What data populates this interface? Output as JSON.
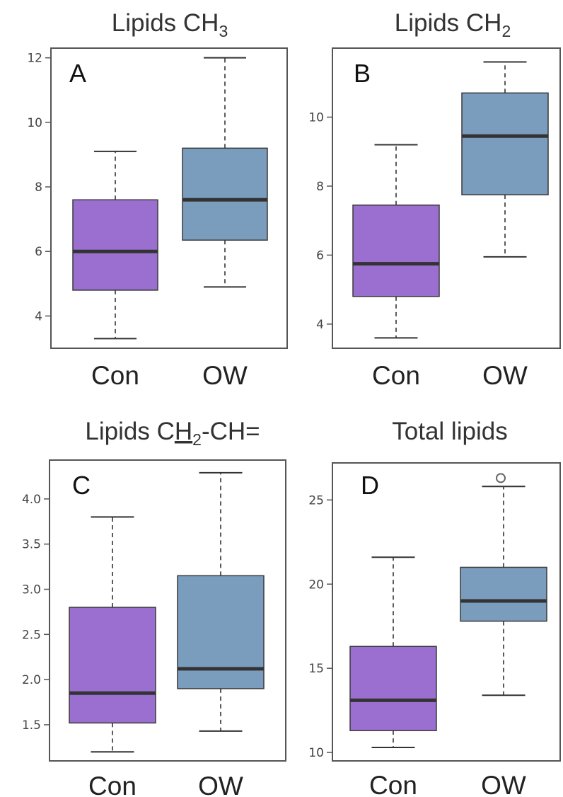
{
  "colors": {
    "con": "#9b6fd0",
    "ow": "#7a9cbd"
  },
  "chart_data": [
    {
      "type": "box",
      "panel": "A",
      "title": "Lipids CH",
      "title_sub": "3",
      "title_tail": "",
      "categories": [
        "Con",
        "OW"
      ],
      "yticks": [
        "4",
        "6",
        "8",
        "10",
        "12"
      ],
      "ylim": [
        3.0,
        12.3
      ],
      "boxes": [
        {
          "name": "Con",
          "min": 3.3,
          "q1": 4.8,
          "median": 6.0,
          "q3": 7.6,
          "max": 9.1,
          "outliers": []
        },
        {
          "name": "OW",
          "min": 4.9,
          "q1": 6.35,
          "median": 7.6,
          "q3": 9.2,
          "max": 12.0,
          "outliers": []
        }
      ]
    },
    {
      "type": "box",
      "panel": "B",
      "title": "Lipids CH",
      "title_sub": "2",
      "title_tail": "",
      "categories": [
        "Con",
        "OW"
      ],
      "yticks": [
        "4",
        "6",
        "8",
        "10"
      ],
      "ylim": [
        3.3,
        12.0
      ],
      "boxes": [
        {
          "name": "Con",
          "min": 3.6,
          "q1": 4.8,
          "median": 5.75,
          "q3": 7.45,
          "max": 9.2,
          "outliers": []
        },
        {
          "name": "OW",
          "min": 5.95,
          "q1": 7.75,
          "median": 9.45,
          "q3": 10.7,
          "max": 11.6,
          "outliers": []
        }
      ]
    },
    {
      "type": "box",
      "panel": "C",
      "title": "Lipids C",
      "title_sub": "2",
      "title_tail": "-CH=",
      "title_underlined": "H",
      "categories": [
        "Con",
        "OW"
      ],
      "yticks": [
        "1.5",
        "2.0",
        "2.5",
        "3.0",
        "3.5",
        "4.0"
      ],
      "ylim": [
        1.1,
        4.43
      ],
      "boxes": [
        {
          "name": "Con",
          "min": 1.2,
          "q1": 1.52,
          "median": 1.85,
          "q3": 2.8,
          "max": 3.8,
          "outliers": []
        },
        {
          "name": "OW",
          "min": 1.43,
          "q1": 1.9,
          "median": 2.12,
          "q3": 3.15,
          "max": 4.29,
          "outliers": []
        }
      ]
    },
    {
      "type": "box",
      "panel": "D",
      "title": "Total lipids",
      "title_sub": "",
      "title_tail": "",
      "categories": [
        "Con",
        "OW"
      ],
      "yticks": [
        "10",
        "15",
        "20",
        "25"
      ],
      "ylim": [
        9.5,
        27.2
      ],
      "boxes": [
        {
          "name": "Con",
          "min": 10.3,
          "q1": 11.3,
          "median": 13.1,
          "q3": 16.3,
          "max": 21.6,
          "outliers": []
        },
        {
          "name": "OW",
          "min": 13.4,
          "q1": 17.8,
          "median": 19.0,
          "q3": 21.0,
          "max": 25.8,
          "outliers": [
            26.3
          ]
        }
      ]
    }
  ]
}
